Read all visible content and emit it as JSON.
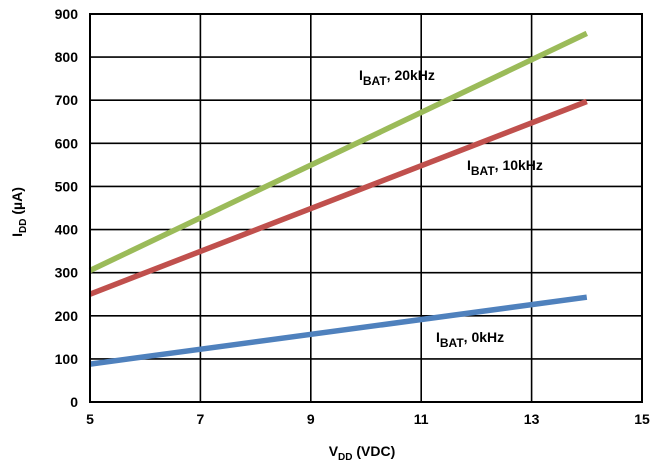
{
  "chart_data": {
    "type": "line",
    "xlabel": {
      "main": "V",
      "sub": "DD",
      "rest": " (VDC)"
    },
    "ylabel": {
      "main": "I",
      "sub": "DD",
      "rest": " (µA)"
    },
    "xlim": [
      5,
      15
    ],
    "ylim": [
      0,
      900
    ],
    "xticks": [
      "5",
      "7",
      "9",
      "11",
      "13",
      "15"
    ],
    "yticks": [
      "0",
      "100",
      "200",
      "300",
      "400",
      "500",
      "600",
      "700",
      "800",
      "900"
    ],
    "grid": true,
    "series": [
      {
        "name": {
          "main": "I",
          "sub": "BAT",
          "rest": ", 20kHz"
        },
        "color": "#9bbb59",
        "x": [
          5,
          14
        ],
        "y": [
          305,
          855
        ]
      },
      {
        "name": {
          "main": "I",
          "sub": "BAT",
          "rest": ", 10kHz"
        },
        "color": "#c0504d",
        "x": [
          5,
          14
        ],
        "y": [
          250,
          697
        ]
      },
      {
        "name": {
          "main": "I",
          "sub": "BAT",
          "rest": ", 0kHz"
        },
        "color": "#4f81bd",
        "x": [
          5,
          14
        ],
        "y": [
          88,
          243
        ]
      }
    ]
  }
}
